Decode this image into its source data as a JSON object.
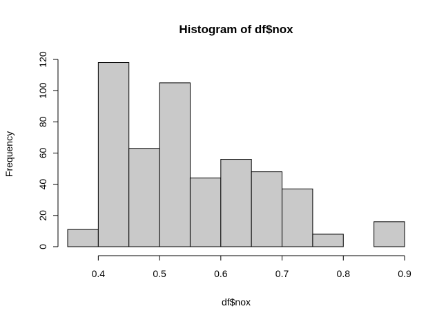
{
  "chart_data": {
    "type": "bar",
    "title": "Histogram of df$nox",
    "xlabel": "df$nox",
    "ylabel": "Frequency",
    "bins": [
      {
        "start": 0.35,
        "end": 0.4,
        "count": 11
      },
      {
        "start": 0.4,
        "end": 0.45,
        "count": 118
      },
      {
        "start": 0.45,
        "end": 0.5,
        "count": 63
      },
      {
        "start": 0.5,
        "end": 0.55,
        "count": 105
      },
      {
        "start": 0.55,
        "end": 0.6,
        "count": 44
      },
      {
        "start": 0.6,
        "end": 0.65,
        "count": 56
      },
      {
        "start": 0.65,
        "end": 0.7,
        "count": 48
      },
      {
        "start": 0.7,
        "end": 0.75,
        "count": 37
      },
      {
        "start": 0.75,
        "end": 0.8,
        "count": 8
      },
      {
        "start": 0.8,
        "end": 0.85,
        "count": 0
      },
      {
        "start": 0.85,
        "end": 0.9,
        "count": 16
      }
    ],
    "x_ticks": [
      0.4,
      0.5,
      0.6,
      0.7,
      0.8,
      0.9
    ],
    "x_tick_labels": [
      "0.4",
      "0.5",
      "0.6",
      "0.7",
      "0.8",
      "0.9"
    ],
    "y_ticks": [
      0,
      20,
      40,
      60,
      80,
      100,
      120
    ],
    "y_tick_labels": [
      "0",
      "20",
      "40",
      "60",
      "80",
      "100",
      "120"
    ],
    "xlim": [
      0.35,
      0.9
    ],
    "ylim": [
      0,
      120
    ],
    "bar_color": "#c9c9c9",
    "grid": false
  }
}
